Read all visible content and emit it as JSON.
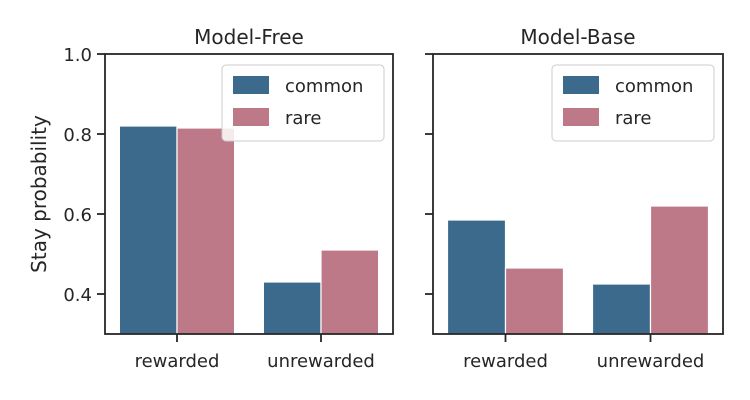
{
  "chart_data": [
    {
      "type": "bar",
      "title": "Model-Free",
      "xlabel": "",
      "ylabel": "Stay probability",
      "ylim": [
        0.3,
        1.0
      ],
      "yticks": [
        0.4,
        0.6,
        0.8,
        1.0
      ],
      "ytick_labels": [
        "0.4",
        "0.6",
        "0.8",
        "1.0"
      ],
      "categories": [
        "rewarded",
        "unrewarded"
      ],
      "series": [
        {
          "name": "common",
          "color": "#3b6a8c",
          "values": [
            0.82,
            0.43
          ]
        },
        {
          "name": "rare",
          "color": "#be7988",
          "values": [
            0.815,
            0.51
          ]
        }
      ],
      "legend": "top-right",
      "grid": false
    },
    {
      "type": "bar",
      "title": "Model-Base",
      "xlabel": "",
      "ylabel": "",
      "ylim": [
        0.3,
        1.0
      ],
      "yticks": [
        0.4,
        0.6,
        0.8,
        1.0
      ],
      "ytick_labels": [
        "",
        "",
        "",
        ""
      ],
      "categories": [
        "rewarded",
        "unrewarded"
      ],
      "series": [
        {
          "name": "common",
          "color": "#3b6a8c",
          "values": [
            0.585,
            0.425
          ]
        },
        {
          "name": "rare",
          "color": "#be7988",
          "values": [
            0.465,
            0.62
          ]
        }
      ],
      "legend": "top-right",
      "grid": false
    }
  ]
}
